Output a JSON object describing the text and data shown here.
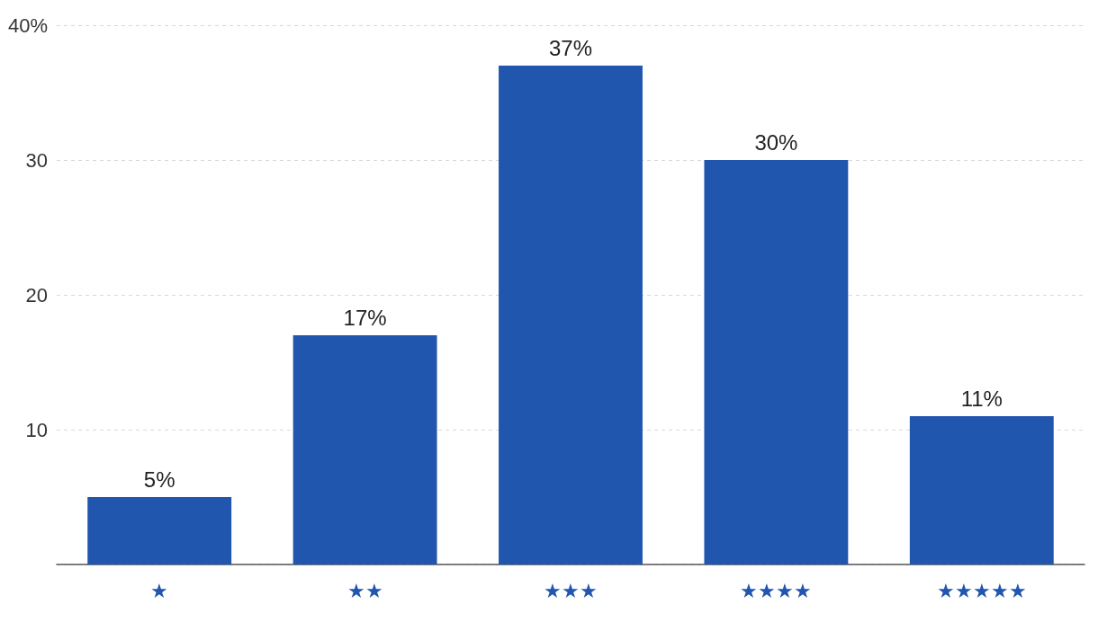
{
  "chart_data": {
    "type": "bar",
    "categories": [
      "★",
      "★★",
      "★★★",
      "★★★★",
      "★★★★★"
    ],
    "values": [
      5,
      17,
      37,
      30,
      11
    ],
    "color": "#2156ae",
    "value_labels": [
      "5%",
      "17%",
      "37%",
      "30%",
      "11%"
    ],
    "ylim": [
      0,
      40
    ],
    "yticks": [
      {
        "value": 0,
        "label": null
      },
      10,
      20,
      30,
      {
        "value": 40,
        "label": "40%"
      }
    ],
    "grid": "y"
  }
}
